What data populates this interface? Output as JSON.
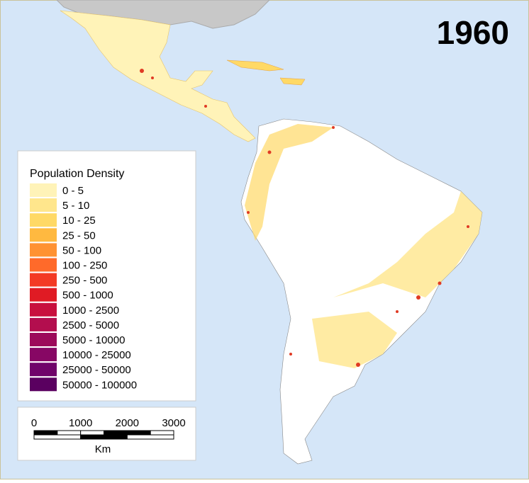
{
  "map": {
    "year": "1960",
    "legend": {
      "title": "Population Density",
      "items": [
        {
          "label": "0 - 5",
          "color": "#fff3b8"
        },
        {
          "label": "5 - 10",
          "color": "#ffe68c"
        },
        {
          "label": "10 - 25",
          "color": "#ffd966"
        },
        {
          "label": "25 - 50",
          "color": "#ffb940"
        },
        {
          "label": "50 - 100",
          "color": "#ff9232"
        },
        {
          "label": "100 - 250",
          "color": "#ff6a2a"
        },
        {
          "label": "250 - 500",
          "color": "#f33a24"
        },
        {
          "label": "500 - 1000",
          "color": "#e01b24"
        },
        {
          "label": "1000 - 2500",
          "color": "#c8103e"
        },
        {
          "label": "2500 - 5000",
          "color": "#b30e4e"
        },
        {
          "label": "5000 - 10000",
          "color": "#9c0a5a"
        },
        {
          "label": "10000 - 25000",
          "color": "#870764"
        },
        {
          "label": "25000 - 50000",
          "color": "#70046a"
        },
        {
          "label": "50000 - 100000",
          "color": "#5a0060"
        }
      ]
    },
    "scale_bar": {
      "ticks": [
        0,
        1000,
        2000,
        3000
      ],
      "unit": "Km"
    }
  }
}
